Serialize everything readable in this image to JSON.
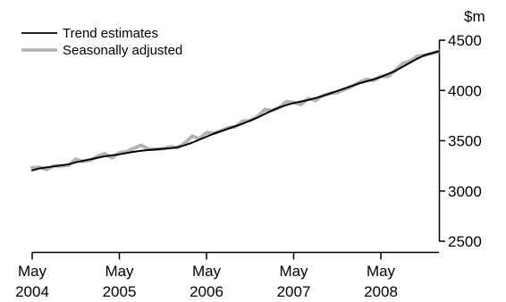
{
  "chart_data": {
    "type": "line",
    "unit_label": "$m",
    "ylim": [
      2500,
      4500
    ],
    "yticks": [
      2500,
      3000,
      3500,
      4000,
      4500
    ],
    "x_period": {
      "start": "2004-05",
      "end": "2008-05",
      "frequency": "monthly"
    },
    "xticks": [
      {
        "month": "May",
        "year": "2004"
      },
      {
        "month": "May",
        "year": "2005"
      },
      {
        "month": "May",
        "year": "2006"
      },
      {
        "month": "May",
        "year": "2007"
      },
      {
        "month": "May",
        "year": "2008"
      }
    ],
    "legend_position": "top-left",
    "grid": false,
    "series": [
      {
        "name": "Trend estimates",
        "color": "#000000",
        "values": [
          3205,
          3225,
          3235,
          3245,
          3255,
          3265,
          3285,
          3300,
          3315,
          3330,
          3345,
          3355,
          3365,
          3378,
          3390,
          3400,
          3408,
          3413,
          3420,
          3425,
          3435,
          3455,
          3480,
          3510,
          3540,
          3570,
          3595,
          3620,
          3645,
          3670,
          3700,
          3730,
          3765,
          3800,
          3830,
          3855,
          3875,
          3890,
          3905,
          3925,
          3945,
          3970,
          3995,
          4020,
          4045,
          4070,
          4090,
          4110,
          4135,
          4165,
          4195,
          4235,
          4275,
          4315,
          4350,
          4370,
          4390
        ]
      },
      {
        "name": "Seasonally adjusted",
        "color": "#b3b3b3",
        "values": [
          3230,
          3235,
          3215,
          3250,
          3250,
          3255,
          3315,
          3295,
          3305,
          3345,
          3370,
          3330,
          3380,
          3390,
          3425,
          3455,
          3415,
          3415,
          3420,
          3440,
          3430,
          3475,
          3545,
          3520,
          3580,
          3575,
          3600,
          3630,
          3640,
          3695,
          3700,
          3740,
          3810,
          3800,
          3830,
          3890,
          3880,
          3860,
          3920,
          3900,
          3950,
          3970,
          3980,
          4010,
          4040,
          4080,
          4110,
          4100,
          4140,
          4140,
          4200,
          4270,
          4290,
          4340,
          4350,
          4370,
          4390
        ]
      }
    ]
  }
}
